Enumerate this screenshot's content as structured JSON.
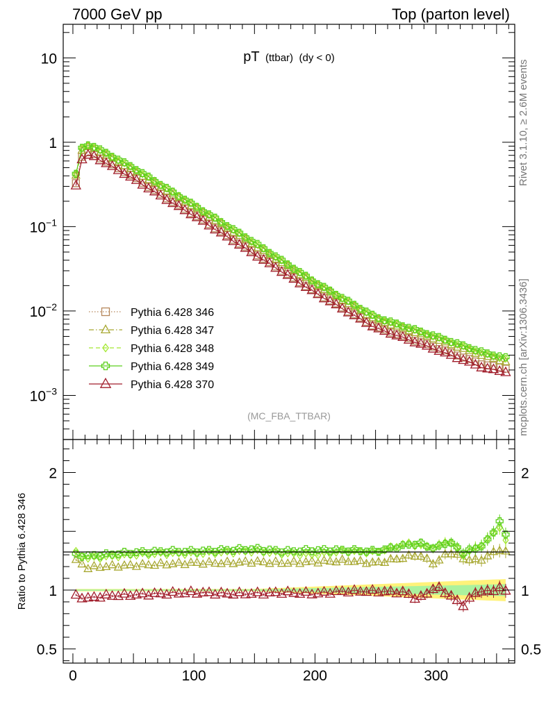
{
  "header": {
    "left": "7000 GeV pp",
    "right": "Top (parton level)"
  },
  "side_labels": {
    "rivet": "Rivet 3.1.10, ≥ 2.6M events",
    "mcplots": "mcplots.cern.ch [arXiv:1306.3436]"
  },
  "watermark": "(MC_FBA_TTBAR)",
  "colors": {
    "s346": "#b5865a",
    "s347": "#a8a832",
    "s348": "#a4e830",
    "s349": "#5ccf1c",
    "s370": "#a01c2a",
    "band_outer": "#fff27a",
    "band_inner": "#9cf2a4"
  },
  "chart_data": [
    {
      "type": "scatter",
      "panel": "main",
      "title": "pT (ttbar) (dy < 0)",
      "title_main": "pT",
      "title_sub": "(ttbar)",
      "title_cond": "(dy < 0)",
      "log_y": true,
      "xlim": [
        -8,
        365
      ],
      "ylim": [
        0.0003,
        25
      ],
      "ytick_labels": [
        {
          "value": 10,
          "base": "10",
          "exp": ""
        },
        {
          "value": 1,
          "base": "1",
          "exp": ""
        },
        {
          "value": 0.1,
          "base": "10",
          "exp": "−1"
        },
        {
          "value": 0.01,
          "base": "10",
          "exp": "−2"
        },
        {
          "value": 0.001,
          "base": "10",
          "exp": "−3"
        }
      ],
      "legend_position": "bottom-left",
      "series": [
        {
          "name": "Pythia 6.428 346",
          "key": "s346",
          "marker": "square",
          "line": "dotted",
          "x": [
            2.5,
            7.5,
            12.5,
            17.5,
            25,
            50,
            75,
            100,
            150,
            200,
            250,
            300,
            340,
            357
          ],
          "y": [
            0.33,
            0.68,
            0.75,
            0.72,
            0.62,
            0.39,
            0.23,
            0.14,
            0.049,
            0.017,
            0.0065,
            0.0037,
            0.0023,
            0.0021
          ]
        },
        {
          "name": "Pythia 6.428 347",
          "key": "s347",
          "marker": "triangle",
          "line": "dashdot",
          "x": [
            2.5,
            7.5,
            12.5,
            17.5,
            25,
            50,
            75,
            100,
            150,
            200,
            250,
            300,
            340,
            357
          ],
          "y": [
            0.41,
            0.8,
            0.87,
            0.84,
            0.73,
            0.46,
            0.28,
            0.17,
            0.06,
            0.021,
            0.0079,
            0.0046,
            0.0029,
            0.0025
          ]
        },
        {
          "name": "Pythia 6.428 348",
          "key": "s348",
          "marker": "diamond",
          "line": "dashed",
          "x": [
            2.5,
            7.5,
            12.5,
            17.5,
            25,
            50,
            75,
            100,
            150,
            200,
            250,
            300,
            340,
            357
          ],
          "y": [
            0.43,
            0.84,
            0.92,
            0.88,
            0.77,
            0.49,
            0.3,
            0.18,
            0.064,
            0.022,
            0.0084,
            0.0049,
            0.0031,
            0.0027
          ]
        },
        {
          "name": "Pythia 6.428 349",
          "key": "s349",
          "marker": "cross",
          "line": "solid",
          "x": [
            2.5,
            7.5,
            12.5,
            17.5,
            25,
            50,
            75,
            100,
            150,
            200,
            250,
            300,
            340,
            357
          ],
          "y": [
            0.42,
            0.85,
            0.93,
            0.89,
            0.78,
            0.5,
            0.3,
            0.18,
            0.065,
            0.022,
            0.0085,
            0.005,
            0.0032,
            0.0028
          ]
        },
        {
          "name": "Pythia 6.428 370",
          "key": "s370",
          "marker": "triangle",
          "line": "solid",
          "x": [
            2.5,
            7.5,
            12.5,
            17.5,
            25,
            50,
            75,
            100,
            150,
            200,
            250,
            300,
            340,
            357
          ],
          "y": [
            0.31,
            0.63,
            0.7,
            0.68,
            0.59,
            0.37,
            0.22,
            0.135,
            0.047,
            0.0165,
            0.0063,
            0.0035,
            0.0021,
            0.0019
          ]
        }
      ]
    },
    {
      "type": "scatter",
      "panel": "ratio",
      "ylabel": "Ratio to Pythia 6.428 346",
      "xlim": [
        -8,
        365
      ],
      "ylim": [
        0.38,
        2.28
      ],
      "ytick_labels": [
        {
          "value": 2,
          "label": "2"
        },
        {
          "value": 1,
          "label": "1"
        },
        {
          "value": 0.5,
          "label": "0.5"
        }
      ],
      "xtick_labels": [
        {
          "value": 0,
          "label": "0"
        },
        {
          "value": 100,
          "label": "100"
        },
        {
          "value": 200,
          "label": "200"
        },
        {
          "value": 300,
          "label": "300"
        }
      ],
      "x": [
        2.5,
        12.5,
        25,
        50,
        75,
        100,
        125,
        150,
        175,
        200,
        225,
        250,
        275,
        285,
        300,
        310,
        322,
        335,
        345,
        352,
        358
      ],
      "series": [
        {
          "key": "s347",
          "y": [
            1.25,
            1.19,
            1.2,
            1.21,
            1.22,
            1.23,
            1.23,
            1.24,
            1.23,
            1.24,
            1.25,
            1.23,
            1.28,
            1.3,
            1.22,
            1.33,
            1.27,
            1.25,
            1.3,
            1.35,
            1.32
          ]
        },
        {
          "key": "s348",
          "y": [
            1.32,
            1.27,
            1.28,
            1.3,
            1.31,
            1.31,
            1.32,
            1.33,
            1.31,
            1.3,
            1.33,
            1.32,
            1.4,
            1.38,
            1.36,
            1.43,
            1.3,
            1.37,
            1.45,
            1.55,
            1.4
          ]
        },
        {
          "key": "s349",
          "y": [
            1.3,
            1.29,
            1.3,
            1.32,
            1.33,
            1.33,
            1.34,
            1.35,
            1.33,
            1.34,
            1.34,
            1.33,
            1.38,
            1.4,
            1.35,
            1.42,
            1.32,
            1.36,
            1.44,
            1.6,
            1.45
          ]
        },
        {
          "key": "s370",
          "y": [
            0.95,
            0.93,
            0.95,
            0.96,
            0.97,
            0.98,
            0.97,
            0.97,
            0.98,
            0.97,
            0.99,
            0.99,
            0.98,
            0.92,
            1.03,
            0.97,
            0.87,
            1.0,
            0.98,
            1.03,
            0.98
          ]
        }
      ]
    }
  ]
}
